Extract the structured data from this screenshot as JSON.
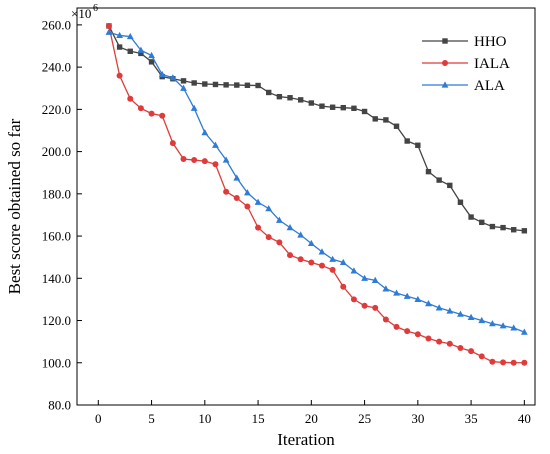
{
  "chart_data": {
    "type": "line",
    "title": "",
    "xlabel": "Iteration",
    "ylabel": "Best score obtained so far",
    "y_multiplier_label": "×10",
    "y_multiplier_exp": "6",
    "xlim": [
      -2,
      41
    ],
    "ylim": [
      80,
      268
    ],
    "x_ticks": [
      0,
      5,
      10,
      15,
      20,
      25,
      30,
      35,
      40
    ],
    "y_ticks": [
      80.0,
      100.0,
      120.0,
      140.0,
      160.0,
      180.0,
      200.0,
      220.0,
      240.0,
      260.0
    ],
    "y_tick_labels": [
      "80.0",
      "100.0",
      "120.0",
      "140.0",
      "160.0",
      "180.0",
      "200.0",
      "220.0",
      "240.0",
      "260.0"
    ],
    "grid": false,
    "legend_position": "top-right",
    "x": [
      1,
      2,
      3,
      4,
      5,
      6,
      7,
      8,
      9,
      10,
      11,
      12,
      13,
      14,
      15,
      16,
      17,
      18,
      19,
      20,
      21,
      22,
      23,
      24,
      25,
      26,
      27,
      28,
      29,
      30,
      31,
      32,
      33,
      34,
      35,
      36,
      37,
      38,
      39,
      40
    ],
    "series": [
      {
        "name": "HHO",
        "color": "#444444",
        "marker": "square",
        "values": [
          259.5,
          249.5,
          247.5,
          246.5,
          242.5,
          235.5,
          234.5,
          233.5,
          232.5,
          232.0,
          231.8,
          231.6,
          231.5,
          231.4,
          231.3,
          228.0,
          226.0,
          225.5,
          224.5,
          223.0,
          221.5,
          221.0,
          220.8,
          220.5,
          219.0,
          215.5,
          215.0,
          212.0,
          205.0,
          203.0,
          190.5,
          186.5,
          184.0,
          176.0,
          169.0,
          166.5,
          164.5,
          164.0,
          163.0,
          162.5
        ]
      },
      {
        "name": "IALA",
        "color": "#e03b3b",
        "marker": "circle",
        "values": [
          259.5,
          236.0,
          225.0,
          220.5,
          218.0,
          217.0,
          204.0,
          196.5,
          196.0,
          195.5,
          194.0,
          181.0,
          178.0,
          174.0,
          164.0,
          159.5,
          157.0,
          151.0,
          149.0,
          147.5,
          146.0,
          144.0,
          136.0,
          130.0,
          127.0,
          126.0,
          120.5,
          117.0,
          115.0,
          113.5,
          111.5,
          110.0,
          109.0,
          107.0,
          105.5,
          103.0,
          100.5,
          100.2,
          100.0,
          100.0
        ]
      },
      {
        "name": "ALA",
        "color": "#2f7bd6",
        "marker": "triangle",
        "values": [
          256.5,
          255.0,
          254.5,
          248.0,
          245.5,
          236.5,
          235.0,
          230.0,
          220.5,
          209.0,
          203.0,
          196.0,
          187.5,
          180.5,
          176.0,
          173.0,
          167.5,
          164.0,
          160.5,
          156.5,
          152.5,
          149.0,
          147.5,
          143.5,
          140.0,
          139.0,
          135.0,
          133.0,
          131.5,
          130.0,
          128.0,
          126.0,
          124.5,
          123.0,
          121.5,
          120.0,
          118.5,
          117.5,
          116.5,
          114.5
        ]
      }
    ]
  }
}
